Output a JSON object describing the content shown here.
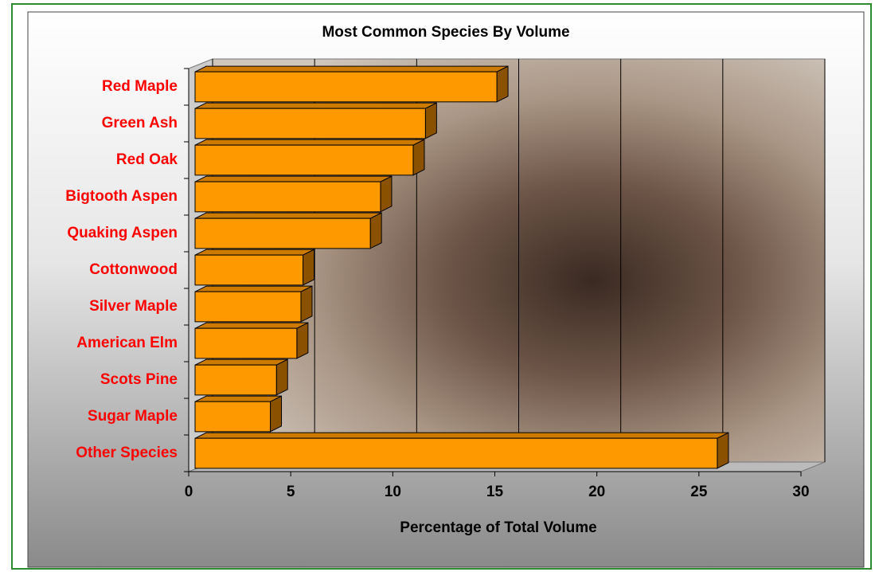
{
  "chart_data": {
    "type": "bar",
    "orientation": "horizontal",
    "title": "Most Common Species By Volume",
    "x_label": "Percentage of Total Volume",
    "categories": [
      "Red Maple",
      "Green Ash",
      "Red Oak",
      "Bigtooth Aspen",
      "Quaking Aspen",
      "Cottonwood",
      "Silver Maple",
      "American Elm",
      "Scots Pine",
      "Sugar Maple",
      "Other Species"
    ],
    "values": [
      15.1,
      11.6,
      11.0,
      9.4,
      8.9,
      5.6,
      5.5,
      5.3,
      4.3,
      4.0,
      25.9
    ],
    "color": "#ff9900",
    "label_color": "#ff0000",
    "xlim": [
      0,
      30
    ],
    "xticks": [
      0,
      5,
      10,
      15,
      20,
      25,
      30
    ],
    "grid": true
  }
}
